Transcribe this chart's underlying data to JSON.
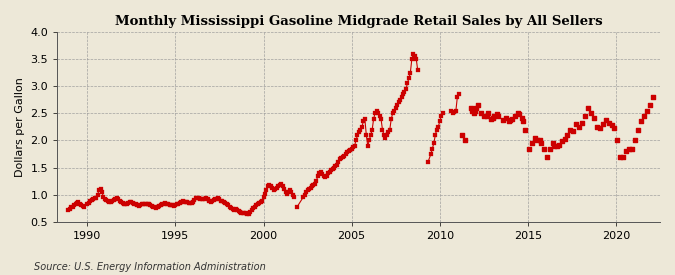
{
  "title": "Monthly Mississippi Gasoline Midgrade Retail Sales by All Sellers",
  "ylabel": "Dollars per Gallon",
  "source": "Source: U.S. Energy Information Administration",
  "xlim": [
    1988.3,
    2022.5
  ],
  "ylim": [
    0.5,
    4.0
  ],
  "yticks": [
    0.5,
    1.0,
    1.5,
    2.0,
    2.5,
    3.0,
    3.5,
    4.0
  ],
  "xticks": [
    1990,
    1995,
    2000,
    2005,
    2010,
    2015,
    2020
  ],
  "background_color": "#EDE8D8",
  "plot_bg_color": "#EDE8D8",
  "marker_color": "#CC0000",
  "data": [
    [
      1988.917,
      0.72
    ],
    [
      1989.0,
      0.74
    ],
    [
      1989.083,
      0.77
    ],
    [
      1989.167,
      0.78
    ],
    [
      1989.25,
      0.8
    ],
    [
      1989.333,
      0.82
    ],
    [
      1989.417,
      0.85
    ],
    [
      1989.5,
      0.86
    ],
    [
      1989.583,
      0.83
    ],
    [
      1989.667,
      0.8
    ],
    [
      1989.75,
      0.79
    ],
    [
      1989.833,
      0.78
    ],
    [
      1990.0,
      0.82
    ],
    [
      1990.083,
      0.85
    ],
    [
      1990.167,
      0.88
    ],
    [
      1990.25,
      0.9
    ],
    [
      1990.333,
      0.91
    ],
    [
      1990.417,
      0.93
    ],
    [
      1990.5,
      0.94
    ],
    [
      1990.583,
      1.0
    ],
    [
      1990.667,
      1.08
    ],
    [
      1990.75,
      1.1
    ],
    [
      1990.833,
      1.05
    ],
    [
      1990.917,
      0.95
    ],
    [
      1991.0,
      0.92
    ],
    [
      1991.083,
      0.9
    ],
    [
      1991.167,
      0.88
    ],
    [
      1991.25,
      0.87
    ],
    [
      1991.333,
      0.86
    ],
    [
      1991.417,
      0.88
    ],
    [
      1991.5,
      0.9
    ],
    [
      1991.583,
      0.92
    ],
    [
      1991.667,
      0.93
    ],
    [
      1991.75,
      0.91
    ],
    [
      1991.833,
      0.88
    ],
    [
      1991.917,
      0.86
    ],
    [
      1992.0,
      0.84
    ],
    [
      1992.083,
      0.83
    ],
    [
      1992.167,
      0.82
    ],
    [
      1992.25,
      0.83
    ],
    [
      1992.333,
      0.85
    ],
    [
      1992.417,
      0.87
    ],
    [
      1992.5,
      0.86
    ],
    [
      1992.583,
      0.84
    ],
    [
      1992.667,
      0.83
    ],
    [
      1992.75,
      0.82
    ],
    [
      1992.833,
      0.8
    ],
    [
      1992.917,
      0.79
    ],
    [
      1993.0,
      0.8
    ],
    [
      1993.083,
      0.82
    ],
    [
      1993.167,
      0.83
    ],
    [
      1993.25,
      0.83
    ],
    [
      1993.333,
      0.82
    ],
    [
      1993.417,
      0.83
    ],
    [
      1993.5,
      0.82
    ],
    [
      1993.583,
      0.8
    ],
    [
      1993.667,
      0.79
    ],
    [
      1993.75,
      0.78
    ],
    [
      1993.833,
      0.77
    ],
    [
      1993.917,
      0.76
    ],
    [
      1994.0,
      0.77
    ],
    [
      1994.083,
      0.79
    ],
    [
      1994.167,
      0.8
    ],
    [
      1994.25,
      0.82
    ],
    [
      1994.333,
      0.83
    ],
    [
      1994.417,
      0.84
    ],
    [
      1994.5,
      0.83
    ],
    [
      1994.583,
      0.82
    ],
    [
      1994.667,
      0.81
    ],
    [
      1994.75,
      0.81
    ],
    [
      1994.833,
      0.8
    ],
    [
      1994.917,
      0.79
    ],
    [
      1995.0,
      0.8
    ],
    [
      1995.083,
      0.82
    ],
    [
      1995.167,
      0.83
    ],
    [
      1995.25,
      0.85
    ],
    [
      1995.333,
      0.87
    ],
    [
      1995.417,
      0.88
    ],
    [
      1995.5,
      0.87
    ],
    [
      1995.583,
      0.86
    ],
    [
      1995.667,
      0.86
    ],
    [
      1995.75,
      0.85
    ],
    [
      1995.833,
      0.84
    ],
    [
      1995.917,
      0.85
    ],
    [
      1996.0,
      0.87
    ],
    [
      1996.083,
      0.9
    ],
    [
      1996.167,
      0.93
    ],
    [
      1996.25,
      0.94
    ],
    [
      1996.333,
      0.93
    ],
    [
      1996.417,
      0.92
    ],
    [
      1996.5,
      0.92
    ],
    [
      1996.583,
      0.91
    ],
    [
      1996.667,
      0.92
    ],
    [
      1996.75,
      0.93
    ],
    [
      1996.833,
      0.91
    ],
    [
      1996.917,
      0.89
    ],
    [
      1997.0,
      0.87
    ],
    [
      1997.083,
      0.88
    ],
    [
      1997.167,
      0.9
    ],
    [
      1997.25,
      0.91
    ],
    [
      1997.333,
      0.92
    ],
    [
      1997.417,
      0.93
    ],
    [
      1997.5,
      0.91
    ],
    [
      1997.583,
      0.89
    ],
    [
      1997.667,
      0.88
    ],
    [
      1997.75,
      0.87
    ],
    [
      1997.833,
      0.85
    ],
    [
      1997.917,
      0.83
    ],
    [
      1998.0,
      0.81
    ],
    [
      1998.083,
      0.78
    ],
    [
      1998.167,
      0.75
    ],
    [
      1998.25,
      0.73
    ],
    [
      1998.333,
      0.72
    ],
    [
      1998.417,
      0.73
    ],
    [
      1998.5,
      0.72
    ],
    [
      1998.583,
      0.7
    ],
    [
      1998.667,
      0.68
    ],
    [
      1998.75,
      0.67
    ],
    [
      1998.833,
      0.67
    ],
    [
      1998.917,
      0.67
    ],
    [
      1999.0,
      0.67
    ],
    [
      1999.083,
      0.65
    ],
    [
      1999.167,
      0.65
    ],
    [
      1999.25,
      0.68
    ],
    [
      1999.333,
      0.72
    ],
    [
      1999.417,
      0.76
    ],
    [
      1999.5,
      0.78
    ],
    [
      1999.583,
      0.8
    ],
    [
      1999.667,
      0.83
    ],
    [
      1999.75,
      0.85
    ],
    [
      1999.833,
      0.86
    ],
    [
      1999.917,
      0.88
    ],
    [
      2000.0,
      0.95
    ],
    [
      2000.083,
      1.02
    ],
    [
      2000.167,
      1.08
    ],
    [
      2000.25,
      1.15
    ],
    [
      2000.333,
      1.18
    ],
    [
      2000.417,
      1.16
    ],
    [
      2000.5,
      1.12
    ],
    [
      2000.583,
      1.08
    ],
    [
      2000.667,
      1.1
    ],
    [
      2000.75,
      1.12
    ],
    [
      2000.833,
      1.15
    ],
    [
      2000.917,
      1.17
    ],
    [
      2001.0,
      1.2
    ],
    [
      2001.083,
      1.16
    ],
    [
      2001.167,
      1.1
    ],
    [
      2001.25,
      1.05
    ],
    [
      2001.333,
      1.02
    ],
    [
      2001.417,
      1.05
    ],
    [
      2001.5,
      1.08
    ],
    [
      2001.583,
      1.05
    ],
    [
      2001.667,
      1.0
    ],
    [
      2001.75,
      0.95
    ],
    [
      2001.917,
      0.78
    ],
    [
      2002.25,
      0.95
    ],
    [
      2002.333,
      1.0
    ],
    [
      2002.417,
      1.05
    ],
    [
      2002.5,
      1.08
    ],
    [
      2002.583,
      1.1
    ],
    [
      2002.667,
      1.12
    ],
    [
      2002.75,
      1.15
    ],
    [
      2002.833,
      1.18
    ],
    [
      2002.917,
      1.2
    ],
    [
      2003.0,
      1.25
    ],
    [
      2003.083,
      1.35
    ],
    [
      2003.167,
      1.4
    ],
    [
      2003.25,
      1.42
    ],
    [
      2003.333,
      1.38
    ],
    [
      2003.417,
      1.35
    ],
    [
      2003.5,
      1.32
    ],
    [
      2003.583,
      1.35
    ],
    [
      2003.667,
      1.4
    ],
    [
      2003.75,
      1.42
    ],
    [
      2003.833,
      1.45
    ],
    [
      2003.917,
      1.48
    ],
    [
      2004.0,
      1.5
    ],
    [
      2004.083,
      1.52
    ],
    [
      2004.167,
      1.55
    ],
    [
      2004.25,
      1.6
    ],
    [
      2004.333,
      1.65
    ],
    [
      2004.417,
      1.68
    ],
    [
      2004.5,
      1.7
    ],
    [
      2004.583,
      1.72
    ],
    [
      2004.667,
      1.75
    ],
    [
      2004.75,
      1.78
    ],
    [
      2004.833,
      1.8
    ],
    [
      2004.917,
      1.82
    ],
    [
      2005.0,
      1.85
    ],
    [
      2005.083,
      1.88
    ],
    [
      2005.167,
      1.9
    ],
    [
      2005.25,
      2.0
    ],
    [
      2005.333,
      2.1
    ],
    [
      2005.417,
      2.15
    ],
    [
      2005.5,
      2.2
    ],
    [
      2005.583,
      2.25
    ],
    [
      2005.667,
      2.35
    ],
    [
      2005.75,
      2.4
    ],
    [
      2005.833,
      2.1
    ],
    [
      2005.917,
      1.9
    ],
    [
      2006.0,
      2.0
    ],
    [
      2006.083,
      2.1
    ],
    [
      2006.167,
      2.2
    ],
    [
      2006.25,
      2.4
    ],
    [
      2006.333,
      2.5
    ],
    [
      2006.417,
      2.55
    ],
    [
      2006.5,
      2.5
    ],
    [
      2006.583,
      2.45
    ],
    [
      2006.667,
      2.4
    ],
    [
      2006.75,
      2.2
    ],
    [
      2006.833,
      2.1
    ],
    [
      2006.917,
      2.05
    ],
    [
      2007.0,
      2.1
    ],
    [
      2007.083,
      2.15
    ],
    [
      2007.167,
      2.2
    ],
    [
      2007.25,
      2.4
    ],
    [
      2007.333,
      2.5
    ],
    [
      2007.417,
      2.55
    ],
    [
      2007.5,
      2.6
    ],
    [
      2007.583,
      2.65
    ],
    [
      2007.667,
      2.7
    ],
    [
      2007.75,
      2.75
    ],
    [
      2007.833,
      2.8
    ],
    [
      2007.917,
      2.85
    ],
    [
      2008.0,
      2.9
    ],
    [
      2008.083,
      2.95
    ],
    [
      2008.167,
      3.05
    ],
    [
      2008.25,
      3.15
    ],
    [
      2008.333,
      3.25
    ],
    [
      2008.417,
      3.5
    ],
    [
      2008.5,
      3.6
    ],
    [
      2008.583,
      3.55
    ],
    [
      2008.667,
      3.5
    ],
    [
      2008.75,
      3.3
    ],
    [
      2009.333,
      1.6
    ],
    [
      2009.5,
      1.75
    ],
    [
      2009.583,
      1.85
    ],
    [
      2009.667,
      1.95
    ],
    [
      2009.75,
      2.1
    ],
    [
      2009.833,
      2.2
    ],
    [
      2009.917,
      2.25
    ],
    [
      2010.0,
      2.35
    ],
    [
      2010.083,
      2.45
    ],
    [
      2010.167,
      2.5
    ],
    [
      2010.667,
      2.55
    ],
    [
      2010.75,
      2.5
    ],
    [
      2010.833,
      2.52
    ],
    [
      2010.917,
      2.55
    ],
    [
      2011.0,
      2.8
    ],
    [
      2011.083,
      2.85
    ],
    [
      2011.25,
      2.1
    ],
    [
      2011.417,
      2.0
    ],
    [
      2011.75,
      2.6
    ],
    [
      2011.833,
      2.55
    ],
    [
      2011.917,
      2.5
    ],
    [
      2012.0,
      2.55
    ],
    [
      2012.083,
      2.6
    ],
    [
      2012.167,
      2.65
    ],
    [
      2012.333,
      2.5
    ],
    [
      2012.5,
      2.45
    ],
    [
      2012.667,
      2.45
    ],
    [
      2012.75,
      2.5
    ],
    [
      2012.917,
      2.4
    ],
    [
      2013.0,
      2.42
    ],
    [
      2013.083,
      2.45
    ],
    [
      2013.25,
      2.48
    ],
    [
      2013.333,
      2.45
    ],
    [
      2013.583,
      2.38
    ],
    [
      2013.75,
      2.42
    ],
    [
      2013.917,
      2.35
    ],
    [
      2014.0,
      2.38
    ],
    [
      2014.083,
      2.4
    ],
    [
      2014.25,
      2.45
    ],
    [
      2014.417,
      2.5
    ],
    [
      2014.5,
      2.48
    ],
    [
      2014.667,
      2.42
    ],
    [
      2014.75,
      2.35
    ],
    [
      2014.833,
      2.2
    ],
    [
      2015.083,
      1.85
    ],
    [
      2015.25,
      1.95
    ],
    [
      2015.417,
      2.05
    ],
    [
      2015.5,
      2.0
    ],
    [
      2015.667,
      2.0
    ],
    [
      2015.75,
      1.95
    ],
    [
      2015.917,
      1.85
    ],
    [
      2016.083,
      1.7
    ],
    [
      2016.25,
      1.85
    ],
    [
      2016.417,
      1.95
    ],
    [
      2016.5,
      1.9
    ],
    [
      2016.667,
      1.9
    ],
    [
      2016.75,
      1.92
    ],
    [
      2016.917,
      1.98
    ],
    [
      2017.083,
      2.02
    ],
    [
      2017.25,
      2.1
    ],
    [
      2017.417,
      2.2
    ],
    [
      2017.583,
      2.18
    ],
    [
      2017.75,
      2.3
    ],
    [
      2017.917,
      2.25
    ],
    [
      2018.083,
      2.32
    ],
    [
      2018.25,
      2.45
    ],
    [
      2018.417,
      2.6
    ],
    [
      2018.583,
      2.5
    ],
    [
      2018.75,
      2.42
    ],
    [
      2018.917,
      2.25
    ],
    [
      2019.083,
      2.22
    ],
    [
      2019.25,
      2.3
    ],
    [
      2019.417,
      2.38
    ],
    [
      2019.583,
      2.32
    ],
    [
      2019.75,
      2.28
    ],
    [
      2019.917,
      2.22
    ],
    [
      2020.083,
      2.0
    ],
    [
      2020.25,
      1.7
    ],
    [
      2020.417,
      1.7
    ],
    [
      2020.583,
      1.8
    ],
    [
      2020.75,
      1.85
    ],
    [
      2020.917,
      1.85
    ],
    [
      2021.083,
      2.0
    ],
    [
      2021.25,
      2.2
    ],
    [
      2021.417,
      2.35
    ],
    [
      2021.583,
      2.45
    ],
    [
      2021.75,
      2.55
    ],
    [
      2021.917,
      2.65
    ],
    [
      2022.083,
      2.8
    ]
  ],
  "segments": [
    [
      [
        1988.917,
        2001.75
      ],
      true
    ],
    [
      [
        2001.917,
        2008.75
      ],
      true
    ],
    [
      [
        2009.333,
        2010.167
      ],
      true
    ],
    [
      [
        2010.667,
        2011.083
      ],
      true
    ],
    [
      [
        2011.25,
        2011.417
      ],
      false
    ],
    [
      [
        2011.75,
        2022.083
      ],
      false
    ]
  ]
}
